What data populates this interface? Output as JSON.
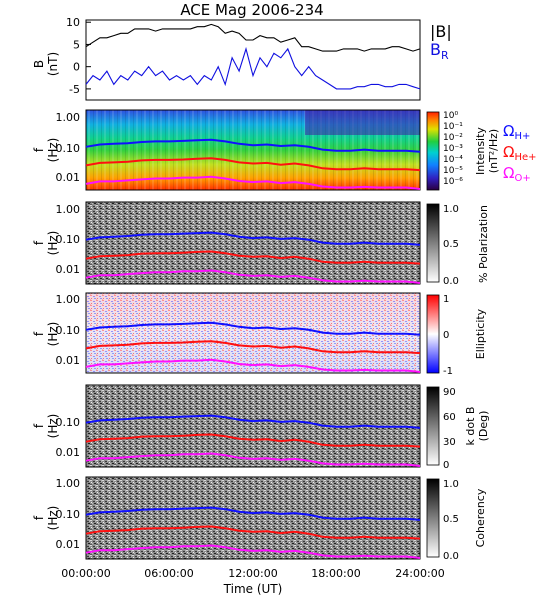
{
  "title": "ACE Mag 2006-234",
  "colors": {
    "B_total": "#000000",
    "B_R": "#1010e0",
    "omega_H": "#1010ff",
    "omega_He": "#ff1010",
    "omega_O": "#ff10ff"
  },
  "legend": {
    "B_total_label": "|B|",
    "B_R_label_main": "B",
    "B_R_label_sub": "R",
    "omega_H_main": "Ω",
    "omega_H_sub": "H+",
    "omega_He_main": "Ω",
    "omega_He_sub": "He+",
    "omega_O_main": "Ω",
    "omega_O_sub": "O+"
  },
  "chart_data": [
    {
      "type": "line",
      "panel": "magnetic-field",
      "ylabel": "B",
      "yunit": "(nT)",
      "ylim": [
        -7.5,
        10.5
      ],
      "yticks": [
        "-5",
        "0",
        "5",
        "10"
      ],
      "xlim_hours": [
        0,
        24
      ],
      "series": [
        {
          "name": "|B|",
          "x_hours": [
            0,
            0.5,
            1,
            1.5,
            2,
            2.5,
            3,
            3.5,
            4,
            4.5,
            5,
            5.5,
            6,
            6.5,
            7,
            7.5,
            8,
            8.5,
            9,
            9.5,
            10,
            10.5,
            11,
            11.5,
            12,
            12.5,
            13,
            13.5,
            14,
            14.5,
            15,
            15.5,
            16,
            16.5,
            17,
            17.5,
            18,
            18.5,
            19,
            19.5,
            20,
            20.5,
            21,
            21.5,
            22,
            22.5,
            23,
            23.5,
            24
          ],
          "values": [
            4.5,
            5.5,
            6.5,
            6.5,
            7,
            7.5,
            7.5,
            8.5,
            8.5,
            8.5,
            8,
            8.5,
            8.5,
            8.5,
            8.5,
            8.5,
            9,
            9,
            9.5,
            9,
            7.5,
            8,
            7.5,
            6,
            6,
            7,
            6.5,
            6.5,
            5.5,
            6,
            6.5,
            4.5,
            4.5,
            4,
            3.5,
            3.5,
            3.5,
            4,
            4,
            4,
            3.5,
            4,
            4,
            4,
            4.5,
            4.5,
            4,
            3.5,
            4
          ]
        },
        {
          "name": "B_R",
          "x_hours": [
            0,
            0.5,
            1,
            1.5,
            2,
            2.5,
            3,
            3.5,
            4,
            4.5,
            5,
            5.5,
            6,
            6.5,
            7,
            7.5,
            8,
            8.5,
            9,
            9.5,
            10,
            10.5,
            11,
            11.5,
            12,
            12.5,
            13,
            13.5,
            14,
            14.5,
            15,
            15.5,
            16,
            16.5,
            17,
            17.5,
            18,
            18.5,
            19,
            19.5,
            20,
            20.5,
            21,
            21.5,
            22,
            22.5,
            23,
            23.5,
            24
          ],
          "values": [
            -4,
            -2,
            -3,
            -1,
            -4,
            -2,
            -3,
            -1,
            -2,
            0,
            -2,
            -1,
            -3,
            -2,
            -3,
            -2,
            -4,
            -2,
            -3,
            0,
            -4,
            2,
            -1,
            4,
            -2,
            2,
            0,
            3,
            2,
            4,
            0,
            -2,
            0,
            -2,
            -3,
            -4,
            -5,
            -5,
            -5,
            -4.5,
            -4.5,
            -4,
            -4,
            -4.5,
            -4.5,
            -4,
            -4,
            -4.5,
            -5
          ]
        }
      ]
    },
    {
      "type": "heatmap",
      "panel": "intensity",
      "ylabel": "f",
      "yunit": "(Hz)",
      "yticks": [
        "1.00",
        "0.10",
        "0.01"
      ],
      "colorbar_label": "Intensity",
      "colorbar_unit": "(nT²/Hz)",
      "colorbar_ticks": [
        "10⁰",
        "10⁻¹",
        "10⁻²",
        "10⁻³",
        "10⁻⁴",
        "10⁻⁵",
        "10⁻⁶"
      ]
    },
    {
      "type": "heatmap",
      "panel": "polarization",
      "ylabel": "f",
      "yunit": "(Hz)",
      "yticks": [
        "1.00",
        "0.10",
        "0.01"
      ],
      "colorbar_label": "% Polarization",
      "colorbar_ticks": [
        "1.0",
        "0.5",
        "0.0"
      ]
    },
    {
      "type": "heatmap",
      "panel": "ellipticity",
      "ylabel": "f",
      "yunit": "(Hz)",
      "yticks": [
        "1.00",
        "0.10",
        "0.01"
      ],
      "colorbar_label": "Ellipticity",
      "colorbar_ticks": [
        "1",
        "0",
        "-1"
      ]
    },
    {
      "type": "heatmap",
      "panel": "k-dot-b",
      "ylabel": "f",
      "yunit": "(Hz)",
      "yticks": [
        "0.10",
        "0.01"
      ],
      "colorbar_label": "k dot B",
      "colorbar_unit": "(Deg)",
      "colorbar_ticks": [
        "90",
        "60",
        "30",
        "0"
      ]
    },
    {
      "type": "heatmap",
      "panel": "coherency",
      "ylabel": "f",
      "yunit": "(Hz)",
      "yticks": [
        "1.00",
        "0.10",
        "0.01"
      ],
      "colorbar_label": "Coherency",
      "colorbar_ticks": [
        "1.0",
        "0.5",
        "0.0"
      ]
    },
    {
      "type": "line",
      "panel": "gyrofrequencies",
      "x_hours": [
        0,
        1,
        2,
        3,
        4,
        5,
        6,
        7,
        8,
        9,
        10,
        11,
        12,
        13,
        14,
        15,
        16,
        17,
        18,
        19,
        20,
        21,
        22,
        23,
        24
      ],
      "series": [
        {
          "name": "Ω_H+",
          "values_hz": [
            0.08,
            0.095,
            0.1,
            0.105,
            0.115,
            0.12,
            0.12,
            0.125,
            0.13,
            0.135,
            0.12,
            0.1,
            0.09,
            0.095,
            0.085,
            0.09,
            0.08,
            0.065,
            0.06,
            0.06,
            0.065,
            0.06,
            0.06,
            0.06,
            0.055
          ]
        },
        {
          "name": "Ω_He+",
          "values_hz": [
            0.02,
            0.024,
            0.025,
            0.026,
            0.029,
            0.03,
            0.03,
            0.031,
            0.033,
            0.034,
            0.03,
            0.025,
            0.023,
            0.024,
            0.021,
            0.023,
            0.02,
            0.016,
            0.015,
            0.015,
            0.016,
            0.015,
            0.015,
            0.015,
            0.014
          ]
        },
        {
          "name": "Ω_O+",
          "values_hz": [
            0.005,
            0.006,
            0.006,
            0.0065,
            0.007,
            0.0075,
            0.0075,
            0.008,
            0.008,
            0.0085,
            0.0075,
            0.0062,
            0.0057,
            0.006,
            0.0053,
            0.0057,
            0.005,
            0.0041,
            0.0038,
            0.0038,
            0.004,
            0.0038,
            0.0038,
            0.0038,
            0.0034
          ]
        }
      ]
    }
  ],
  "x_axis": {
    "label": "Time (UT)",
    "ticks": [
      "00:00:00",
      "06:00:00",
      "12:00:00",
      "18:00:00",
      "24:00:00"
    ]
  }
}
